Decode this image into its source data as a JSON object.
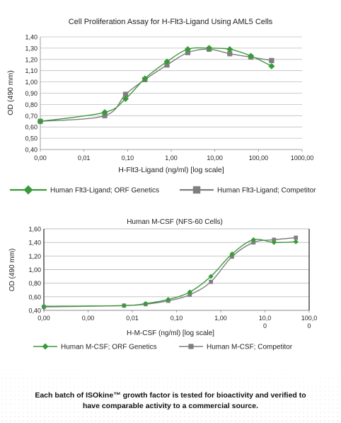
{
  "chart_data": [
    {
      "type": "line",
      "title": "Cell Proliferation Assay for H-Flt3-Ligand Using AML5 Cells",
      "xlabel": "H-Flt3-Ligand (ng/ml) [log scale]",
      "ylabel": "OD (490 mm)",
      "xscale": "log",
      "x_tick_labels": [
        "0,00",
        "0,01",
        "0,10",
        "1,00",
        "10,00",
        "100,00",
        "1000,00"
      ],
      "y_tick_labels": [
        "0,40",
        "0,50",
        "0,60",
        "0,70",
        "0,80",
        "0,90",
        "1,00",
        "1,10",
        "1,20",
        "1,30",
        "1,40"
      ],
      "ylim": [
        0.4,
        1.4
      ],
      "grid": "horizontal",
      "legend_position": "bottom",
      "series": [
        {
          "name": "Human Flt3-Ligand; ORF Genetics",
          "color": "#3a9a3a",
          "marker": "diamond",
          "x": [
            0.001,
            0.03,
            0.09,
            0.25,
            0.8,
            2.4,
            7.4,
            22,
            67,
            200
          ],
          "y": [
            0.65,
            0.73,
            0.85,
            1.03,
            1.18,
            1.29,
            1.3,
            1.29,
            1.23,
            1.14
          ]
        },
        {
          "name": "Human Flt3-Ligand; Competitor",
          "color": "#7f7f7f",
          "marker": "square",
          "x": [
            0.001,
            0.03,
            0.09,
            0.25,
            0.8,
            2.4,
            7.4,
            22,
            67,
            200
          ],
          "y": [
            0.65,
            0.7,
            0.89,
            1.02,
            1.15,
            1.26,
            1.29,
            1.25,
            1.22,
            1.19
          ]
        }
      ]
    },
    {
      "type": "line",
      "title": "Human M-CSF (NFS-60 Cells)",
      "xlabel": "H-M-CSF (ng/ml) [log scale]",
      "ylabel": "OD (490 mm)",
      "xscale": "log",
      "x_tick_labels": [
        "0,00",
        "0,00",
        "0,01",
        "0,10",
        "1,00",
        "10,0\n0",
        "100,0\n0"
      ],
      "y_tick_labels": [
        "0,40",
        "0,60",
        "0,80",
        "1,00",
        "1,20",
        "1,40",
        "1,60"
      ],
      "ylim": [
        0.4,
        1.6
      ],
      "grid": "horizontal",
      "legend_position": "bottom",
      "series": [
        {
          "name": "Human M-CSF; ORF Genetics",
          "color": "#3a9a3a",
          "marker": "diamond",
          "x": [
            0.0001,
            0.0065,
            0.02,
            0.065,
            0.2,
            0.6,
            1.8,
            5.5,
            16,
            50
          ],
          "y": [
            0.46,
            0.47,
            0.5,
            0.56,
            0.67,
            0.9,
            1.23,
            1.44,
            1.4,
            1.41
          ]
        },
        {
          "name": "Human M-CSF; Competitor",
          "color": "#7f7f7f",
          "marker": "square",
          "x": [
            0.0001,
            0.0065,
            0.02,
            0.065,
            0.2,
            0.6,
            1.8,
            5.5,
            16,
            50
          ],
          "y": [
            0.45,
            0.47,
            0.49,
            0.54,
            0.63,
            0.82,
            1.19,
            1.4,
            1.44,
            1.47
          ]
        }
      ]
    }
  ],
  "caption": "Each batch of ISOkine™ growth factor is tested for bioactivity and verified to have comparable activity to a commercial source."
}
